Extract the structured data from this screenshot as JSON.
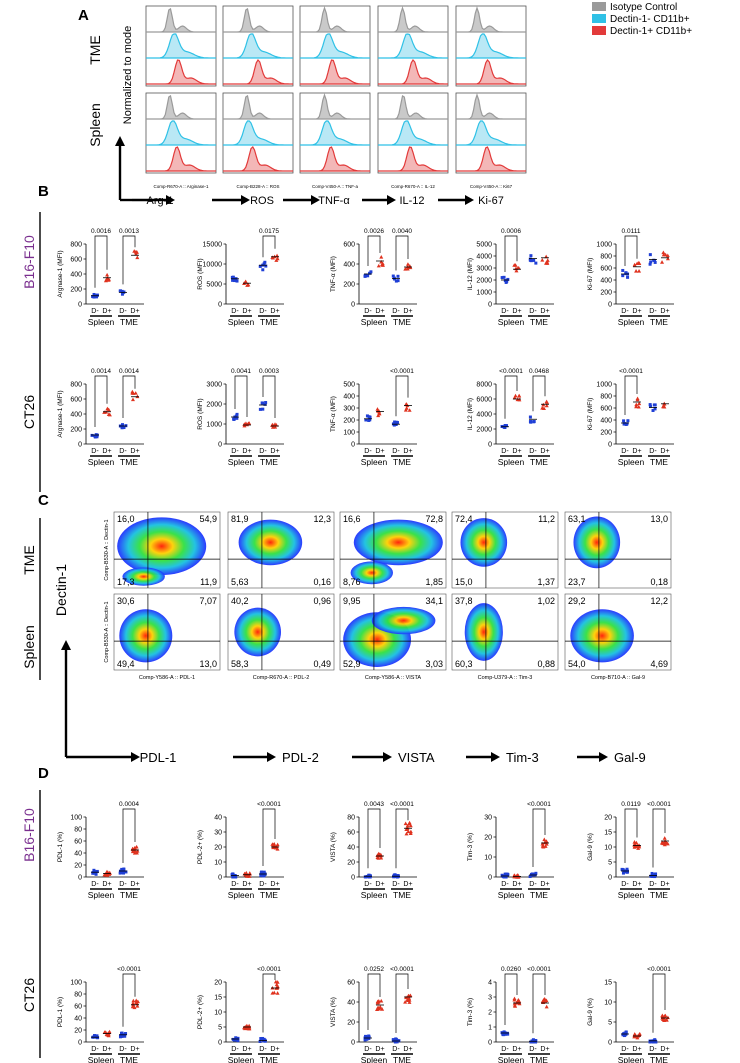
{
  "panels": {
    "A": "A",
    "B": "B",
    "C": "C",
    "D": "D"
  },
  "colors": {
    "isotype": "#9a9a9a",
    "dneg": "#2fc1e6",
    "dpos": "#e23a3a",
    "blue": "#1f3fd6",
    "red": "#e0321e",
    "purple": "#7a2f8f"
  },
  "panelA": {
    "rows": [
      "TME",
      "Spleen"
    ],
    "ylabel": "Normalized to mode",
    "markers": [
      "Arg-1",
      "ROS",
      "TNF-α",
      "IL-12",
      "Ki-67"
    ],
    "axis_labels": [
      "Comp-R670-A :: Arginase-1",
      "Comp-B228-A :: ROS",
      "Comp-V450-A :: TNF-a",
      "Comp-R670-A :: IL-12",
      "Comp-V450-A :: Ki67"
    ],
    "legend": [
      "Isotype Control",
      "Dectin-1- CD11b+",
      "Dectin-1+ CD11b+"
    ]
  },
  "rows_labels": {
    "b16": "B16-F10",
    "ct26": "CT26"
  },
  "groups": {
    "dneg": "D-",
    "dpos": "D+",
    "spleen": "Spleen",
    "tme": "TME"
  },
  "chart_data": [
    {
      "type": "scatter",
      "panel": "B",
      "row": "B16-F10",
      "ylabel": "Argnase-1 (MFI)",
      "ylim": [
        0,
        800
      ],
      "ticks": [
        "0",
        "200",
        "400",
        "600",
        "800"
      ],
      "means": [
        110,
        350,
        155,
        650
      ],
      "pvalues": [
        {
          "text": "0.0016",
          "pair": [
            0,
            1
          ]
        },
        {
          "text": "0.0013",
          "pair": [
            2,
            3
          ]
        }
      ]
    },
    {
      "type": "scatter",
      "panel": "B",
      "row": "B16-F10",
      "ylabel": "ROS (MFI)",
      "ylim": [
        0,
        15000
      ],
      "ticks": [
        "0",
        "5000",
        "10000",
        "15000"
      ],
      "means": [
        6300,
        5200,
        9700,
        11800
      ],
      "pvalues": [
        {
          "text": "0.0175",
          "pair": [
            2,
            3
          ]
        }
      ]
    },
    {
      "type": "scatter",
      "panel": "B",
      "row": "B16-F10",
      "ylabel": "TNF-α (MFI)",
      "ylim": [
        0,
        600
      ],
      "ticks": [
        "0",
        "200",
        "400",
        "600"
      ],
      "means": [
        300,
        430,
        255,
        370
      ],
      "pvalues": [
        {
          "text": "0.0026",
          "pair": [
            0,
            1
          ]
        },
        {
          "text": "0.0040",
          "pair": [
            2,
            3
          ]
        }
      ]
    },
    {
      "type": "scatter",
      "panel": "B",
      "row": "B16-F10",
      "ylabel": "IL-12 (MFI)",
      "ylim": [
        0,
        5000
      ],
      "ticks": [
        "0",
        "1000",
        "2000",
        "3000",
        "4000",
        "5000"
      ],
      "means": [
        2000,
        2900,
        3800,
        3850
      ],
      "pvalues": [
        {
          "text": "0.0006",
          "pair": [
            0,
            1
          ]
        }
      ]
    },
    {
      "type": "scatter",
      "panel": "B",
      "row": "B16-F10",
      "ylabel": "Ki-67 (MFI)",
      "ylim": [
        0,
        1000
      ],
      "ticks": [
        "0",
        "200",
        "400",
        "600",
        "800",
        "1000"
      ],
      "means": [
        500,
        620,
        740,
        770
      ],
      "pvalues": [
        {
          "text": "0.0111",
          "pair": [
            0,
            1
          ]
        }
      ]
    },
    {
      "type": "scatter",
      "panel": "B",
      "row": "CT26",
      "ylabel": "Argnase-1 (MFI)",
      "ylim": [
        0,
        800
      ],
      "ticks": [
        "0",
        "200",
        "400",
        "600",
        "800"
      ],
      "means": [
        120,
        430,
        240,
        630
      ],
      "pvalues": [
        {
          "text": "0.0014",
          "pair": [
            0,
            1
          ]
        },
        {
          "text": "0.0014",
          "pair": [
            2,
            3
          ]
        }
      ]
    },
    {
      "type": "scatter",
      "panel": "B",
      "row": "CT26",
      "ylabel": "ROS (MFI)",
      "ylim": [
        0,
        3000
      ],
      "ticks": [
        "0",
        "1000",
        "2000",
        "3000"
      ],
      "means": [
        1350,
        950,
        1950,
        900
      ],
      "pvalues": [
        {
          "text": "0.0041",
          "pair": [
            0,
            1
          ]
        },
        {
          "text": "0.0003",
          "pair": [
            2,
            3
          ]
        }
      ]
    },
    {
      "type": "scatter",
      "panel": "B",
      "row": "CT26",
      "ylabel": "TNF-α (MFI)",
      "ylim": [
        0,
        500
      ],
      "ticks": [
        "0",
        "100",
        "200",
        "300",
        "400",
        "500"
      ],
      "means": [
        210,
        270,
        165,
        320
      ],
      "pvalues": [
        {
          "text": "<0.0001",
          "pair": [
            2,
            3
          ]
        }
      ]
    },
    {
      "type": "scatter",
      "panel": "B",
      "row": "CT26",
      "ylabel": "IL-12 (MFI)",
      "ylim": [
        0,
        8000
      ],
      "ticks": [
        "0",
        "2000",
        "4000",
        "6000",
        "8000"
      ],
      "means": [
        2300,
        6000,
        3300,
        5300
      ],
      "pvalues": [
        {
          "text": "<0.0001",
          "pair": [
            0,
            1
          ]
        },
        {
          "text": "0.0468",
          "pair": [
            2,
            3
          ]
        }
      ]
    },
    {
      "type": "scatter",
      "panel": "B",
      "row": "CT26",
      "ylabel": "Ki-67 (MFI)",
      "ylim": [
        0,
        1000
      ],
      "ticks": [
        "0",
        "200",
        "400",
        "600",
        "800",
        "1000"
      ],
      "means": [
        350,
        700,
        610,
        670
      ],
      "pvalues": [
        {
          "text": "<0.0001",
          "pair": [
            0,
            1
          ]
        }
      ]
    },
    {
      "type": "scatter",
      "panel": "D",
      "row": "B16-F10",
      "ylabel": "PDL-1 (%)",
      "ylim": [
        0,
        100
      ],
      "ticks": [
        "0",
        "20",
        "40",
        "60",
        "80",
        "100"
      ],
      "means": [
        8,
        6,
        10,
        45
      ],
      "pvalues": [
        {
          "text": "0.0004",
          "pair": [
            2,
            3
          ]
        }
      ]
    },
    {
      "type": "scatter",
      "panel": "D",
      "row": "B16-F10",
      "ylabel": "PDL-2+ (%)",
      "ylim": [
        0,
        40
      ],
      "ticks": [
        "0",
        "10",
        "20",
        "30",
        "40"
      ],
      "means": [
        1,
        1.5,
        2,
        20
      ],
      "pvalues": [
        {
          "text": "<0.0001",
          "pair": [
            2,
            3
          ]
        }
      ]
    },
    {
      "type": "scatter",
      "panel": "D",
      "row": "B16-F10",
      "ylabel": "VISTA (%)",
      "ylim": [
        0,
        80
      ],
      "ticks": [
        "0",
        "20",
        "40",
        "60",
        "80"
      ],
      "means": [
        1,
        28,
        1,
        65
      ],
      "pvalues": [
        {
          "text": "0.0043",
          "pair": [
            0,
            1
          ]
        },
        {
          "text": "<0.0001",
          "pair": [
            2,
            3
          ]
        }
      ]
    },
    {
      "type": "scatter",
      "panel": "D",
      "row": "B16-F10",
      "ylabel": "Tim-3 (%)",
      "ylim": [
        0,
        30
      ],
      "ticks": [
        "0",
        "10",
        "20",
        "30"
      ],
      "means": [
        0.5,
        0.3,
        1,
        17
      ],
      "pvalues": [
        {
          "text": "<0.0001",
          "pair": [
            2,
            3
          ]
        }
      ]
    },
    {
      "type": "scatter",
      "panel": "D",
      "row": "B16-F10",
      "ylabel": "Gal-9 (%)",
      "ylim": [
        0,
        20
      ],
      "ticks": [
        "0",
        "5",
        "10",
        "15",
        "20"
      ],
      "means": [
        2,
        10.5,
        0.5,
        12
      ],
      "pvalues": [
        {
          "text": "0.0119",
          "pair": [
            0,
            1
          ]
        },
        {
          "text": "<0.0001",
          "pair": [
            2,
            3
          ]
        }
      ]
    },
    {
      "type": "scatter",
      "panel": "D",
      "row": "CT26",
      "ylabel": "PDL-1 (%)",
      "ylim": [
        0,
        100
      ],
      "ticks": [
        "0",
        "20",
        "40",
        "60",
        "80",
        "100"
      ],
      "means": [
        8,
        14,
        12,
        62
      ],
      "pvalues": [
        {
          "text": "<0.0001",
          "pair": [
            2,
            3
          ]
        }
      ]
    },
    {
      "type": "scatter",
      "panel": "D",
      "row": "CT26",
      "ylabel": "PDL-2+ (%)",
      "ylim": [
        0,
        20
      ],
      "ticks": [
        "0",
        "5",
        "10",
        "15",
        "20"
      ],
      "means": [
        1,
        5,
        0.5,
        18
      ],
      "pvalues": [
        {
          "text": "<0.0001",
          "pair": [
            2,
            3
          ]
        }
      ]
    },
    {
      "type": "scatter",
      "panel": "D",
      "row": "CT26",
      "ylabel": "VISTA (%)",
      "ylim": [
        0,
        60
      ],
      "ticks": [
        "0",
        "20",
        "40",
        "60"
      ],
      "means": [
        4,
        37,
        1,
        45
      ],
      "pvalues": [
        {
          "text": "0.0252",
          "pair": [
            0,
            1
          ]
        },
        {
          "text": "<0.0001",
          "pair": [
            2,
            3
          ]
        }
      ]
    },
    {
      "type": "scatter",
      "panel": "D",
      "row": "CT26",
      "ylabel": "Tim-3 (%)",
      "ylim": [
        0,
        4
      ],
      "ticks": [
        "0",
        "1",
        "2",
        "3",
        "4"
      ],
      "means": [
        0.6,
        2.6,
        0.05,
        2.6
      ],
      "pvalues": [
        {
          "text": "0.0260",
          "pair": [
            0,
            1
          ]
        },
        {
          "text": "<0.0001",
          "pair": [
            2,
            3
          ]
        }
      ]
    },
    {
      "type": "scatter",
      "panel": "D",
      "row": "CT26",
      "ylabel": "Gal-9 (%)",
      "ylim": [
        0,
        15
      ],
      "ticks": [
        "0",
        "5",
        "10",
        "15"
      ],
      "means": [
        2,
        1.5,
        0.3,
        6
      ],
      "pvalues": [
        {
          "text": "<0.0001",
          "pair": [
            2,
            3
          ]
        }
      ]
    }
  ],
  "panelC": {
    "rows": [
      "TME",
      "Spleen"
    ],
    "ylabel": "Dectin-1",
    "y_axis_labels": [
      "Comp-B530-A :: Dectin-1",
      "Comp-B530-A :: Dectin-1"
    ],
    "markers": [
      "PDL-1",
      "PDL-2",
      "VISTA",
      "Tim-3",
      "Gal-9"
    ],
    "x_axis_labels": [
      "Comp-Y586-A :: PDL-1",
      "Comp-R670-A :: PDL-2",
      "Comp-Y586-A :: VISTA",
      "Comp-U379-A :: Tim-3",
      "Comp-B710-A :: Gal-9"
    ],
    "quadrants": [
      [
        [
          "16,0",
          "54,9",
          "17,3",
          "11,9"
        ],
        [
          "81,9",
          "12,3",
          "5,63",
          "0,16"
        ],
        [
          "16,6",
          "72,8",
          "8,76",
          "1,85"
        ],
        [
          "72,4",
          "11,2",
          "15,0",
          "1,37"
        ],
        [
          "63,1",
          "13,0",
          "23,7",
          "0,18"
        ]
      ],
      [
        [
          "30,6",
          "7,07",
          "49,4",
          "13,0"
        ],
        [
          "40,2",
          "0,96",
          "58,3",
          "0,49"
        ],
        [
          "9,95",
          "34,1",
          "52,9",
          "3,03"
        ],
        [
          "37,8",
          "1,02",
          "60,3",
          "0,88"
        ],
        [
          "29,2",
          "12,2",
          "54,0",
          "4,69"
        ]
      ]
    ]
  }
}
